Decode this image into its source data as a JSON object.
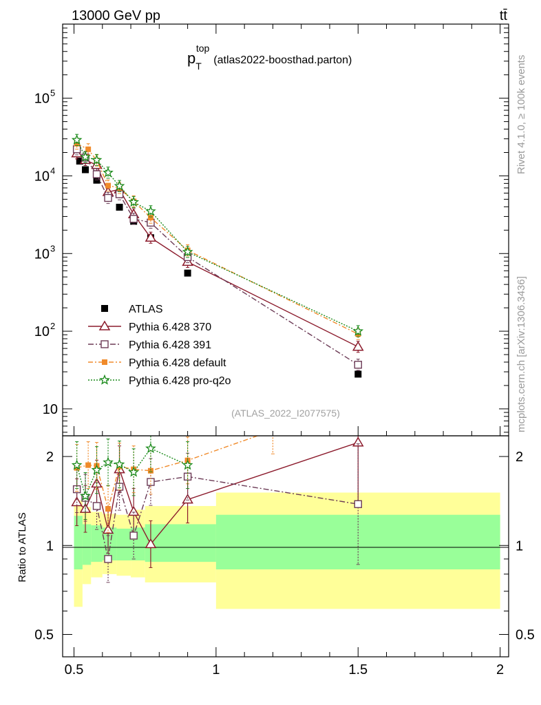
{
  "header": {
    "left": "13000 GeV pp",
    "right": "tt̄"
  },
  "side_labels": {
    "rivet": "Rivet 4.1.0, ≥ 100k events",
    "mcplots": "mcplots.cern.ch [arXiv:1306.3436]"
  },
  "colors": {
    "atlas": "#000000",
    "p370": "#8b1a2b",
    "p391": "#6b3a55",
    "pdefault": "#f08a2a",
    "pq2o": "#1a8a1a",
    "band_inner": "#99ff99",
    "band_outer": "#ffff99"
  },
  "chart_data": [
    {
      "type": "line",
      "scale": "log",
      "title_main": "p",
      "title_sub": "T",
      "title_sup": "top",
      "title_suffix": "(atlas2022-boosthad.parton)",
      "watermark": "(ATLAS_2022_I2077575)",
      "xlim": [
        0.46,
        2.03
      ],
      "ylim": [
        4.5,
        900000
      ],
      "y_tick_labels": [
        {
          "value": 10,
          "label": "10"
        },
        {
          "value": 100,
          "label": "10",
          "exp": "2"
        },
        {
          "value": 1000,
          "label": "10",
          "exp": "3"
        },
        {
          "value": 10000,
          "label": "10",
          "exp": "4"
        },
        {
          "value": 100000,
          "label": "10",
          "exp": "5"
        }
      ],
      "series": [
        {
          "name": "ATLAS",
          "key": "atlas",
          "x": [
            0.52,
            0.54,
            0.58,
            0.62,
            0.66,
            0.71,
            0.77,
            0.9,
            1.5
          ],
          "y": [
            15500,
            12000,
            8800,
            5700,
            3950,
            2600,
            1600,
            560,
            28
          ]
        },
        {
          "name": "Pythia 6.428 370",
          "key": "p370",
          "x": [
            0.51,
            0.54,
            0.58,
            0.62,
            0.66,
            0.71,
            0.77,
            0.9,
            1.5
          ],
          "y": [
            19500,
            16000,
            13800,
            6200,
            6700,
            3200,
            1600,
            780,
            63
          ]
        },
        {
          "name": "Pythia 6.428 391",
          "key": "p391",
          "x": [
            0.51,
            0.54,
            0.58,
            0.62,
            0.66,
            0.71,
            0.77,
            0.9,
            1.5
          ],
          "y": [
            22000,
            17200,
            10500,
            5200,
            5800,
            2800,
            2500,
            900,
            37
          ]
        },
        {
          "name": "Pythia 6.428 default",
          "key": "pdefault",
          "x": [
            0.51,
            0.55,
            0.58,
            0.62,
            0.66,
            0.71,
            0.77,
            0.9,
            1.5
          ],
          "y": [
            26000,
            22000,
            15800,
            7500,
            7000,
            4700,
            2900,
            1100,
            92
          ]
        },
        {
          "name": "Pythia 6.428 pro-q2o",
          "key": "pq2o",
          "x": [
            0.51,
            0.54,
            0.58,
            0.62,
            0.66,
            0.71,
            0.77,
            0.9,
            1.5
          ],
          "y": [
            29000,
            17500,
            16000,
            11000,
            7400,
            4600,
            3500,
            1050,
            100
          ]
        }
      ]
    },
    {
      "type": "line",
      "scale": "log",
      "ylabel": "Ratio to ATLAS",
      "xlim": [
        0.46,
        2.03
      ],
      "ylim": [
        0.42,
        2.35
      ],
      "x_tick_labels": [
        {
          "value": 0.5,
          "label": "0.5"
        },
        {
          "value": 1,
          "label": "1"
        },
        {
          "value": 1.5,
          "label": "1.5"
        },
        {
          "value": 2,
          "label": "2"
        }
      ],
      "y_tick_labels": [
        {
          "value": 0.5,
          "label": "0.5"
        },
        {
          "value": 1,
          "label": "1"
        },
        {
          "value": 2,
          "label": "2"
        }
      ],
      "bands": [
        {
          "x0": 0.5,
          "x1": 0.53,
          "inner": [
            0.83,
            1.26
          ],
          "outer": [
            0.62,
            1.42
          ]
        },
        {
          "x0": 0.53,
          "x1": 0.56,
          "inner": [
            0.86,
            1.18
          ],
          "outer": [
            0.74,
            1.35
          ]
        },
        {
          "x0": 0.56,
          "x1": 0.6,
          "inner": [
            0.88,
            1.17
          ],
          "outer": [
            0.78,
            1.3
          ]
        },
        {
          "x0": 0.6,
          "x1": 0.65,
          "inner": [
            0.89,
            1.15
          ],
          "outer": [
            0.8,
            1.28
          ]
        },
        {
          "x0": 0.65,
          "x1": 0.7,
          "inner": [
            0.89,
            1.14
          ],
          "outer": [
            0.79,
            1.27
          ]
        },
        {
          "x0": 0.7,
          "x1": 0.75,
          "inner": [
            0.89,
            1.15
          ],
          "outer": [
            0.78,
            1.32
          ]
        },
        {
          "x0": 0.75,
          "x1": 1.0,
          "inner": [
            0.88,
            1.18
          ],
          "outer": [
            0.75,
            1.36
          ]
        },
        {
          "x0": 1.0,
          "x1": 2.0,
          "inner": [
            0.83,
            1.27
          ],
          "outer": [
            0.61,
            1.51
          ]
        }
      ],
      "series": [
        {
          "name": "Pythia 6.428 370",
          "key": "p370",
          "x": [
            0.51,
            0.54,
            0.58,
            0.62,
            0.66,
            0.71,
            0.77,
            0.9,
            1.5
          ],
          "y": [
            1.4,
            1.33,
            1.62,
            1.13,
            1.81,
            1.3,
            1.01,
            1.43,
            2.23
          ]
        },
        {
          "name": "Pythia 6.428 391",
          "key": "p391",
          "x": [
            0.51,
            0.54,
            0.58,
            0.62,
            0.66,
            0.71,
            0.77,
            0.9,
            1.5
          ],
          "y": [
            1.55,
            1.45,
            1.36,
            0.9,
            1.58,
            1.08,
            1.64,
            1.71,
            1.38
          ]
        },
        {
          "name": "Pythia 6.428 default",
          "key": "pdefault",
          "x": [
            0.51,
            0.55,
            0.58,
            0.62,
            0.66,
            0.71,
            0.77,
            0.9,
            1.2
          ],
          "y": [
            1.83,
            1.87,
            1.86,
            1.33,
            1.85,
            1.81,
            1.79,
            1.94,
            2.45
          ]
        },
        {
          "name": "Pythia 6.428 pro-q2o",
          "key": "pq2o",
          "x": [
            0.51,
            0.54,
            0.58,
            0.62,
            0.66,
            0.71,
            0.77,
            0.9
          ],
          "y": [
            1.87,
            1.47,
            1.8,
            1.91,
            1.88,
            1.77,
            2.13,
            1.87
          ]
        }
      ]
    }
  ]
}
